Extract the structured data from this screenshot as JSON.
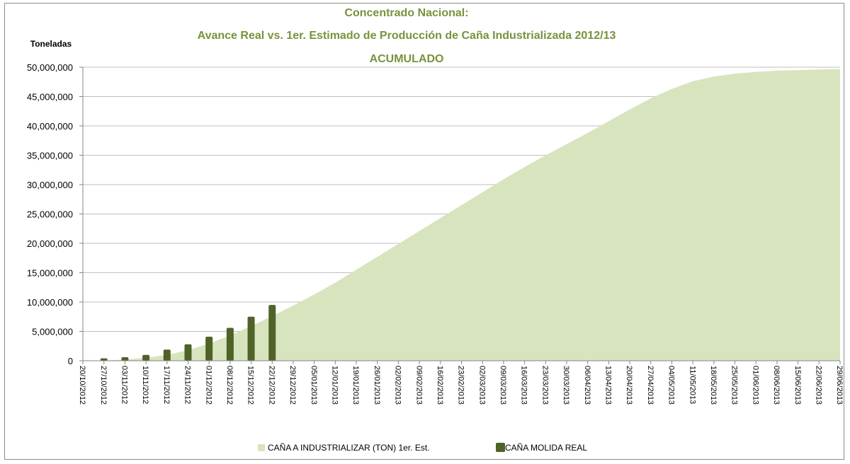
{
  "colors": {
    "title": "#77933c",
    "estimate_area": "#d7e4bd",
    "real_bars": "#4f6228",
    "gridline": "#bfbfbf"
  },
  "chart_data": {
    "type": "area",
    "title_lines": [
      "Concentrado Nacional:",
      "Avance Real vs. 1er. Estimado de Producción de Caña Industrializada 2012/13",
      "ACUMULADO"
    ],
    "ylabel": "Toneladas",
    "xlabel": "",
    "ylim": [
      0,
      50000000
    ],
    "yticks": [
      "50,000,000",
      "45,000,000",
      "40,000,000",
      "35,000,000",
      "30,000,000",
      "25,000,000",
      "20,000,000",
      "15,000,000",
      "10,000,000",
      "5,000,000",
      "0"
    ],
    "ytick_values": [
      50000000,
      45000000,
      40000000,
      35000000,
      30000000,
      25000000,
      20000000,
      15000000,
      10000000,
      5000000,
      0
    ],
    "x": [
      "20/10/2012",
      "27/10/2012",
      "03/11/2012",
      "10/11/2012",
      "17/11/2012",
      "24/11/2012",
      "01/12/2012",
      "08/12/2012",
      "15/12/2012",
      "22/12/2012",
      "29/12/2012",
      "05/01/2013",
      "12/01/2013",
      "19/01/2013",
      "26/01/2013",
      "02/02/2013",
      "09/02/2013",
      "16/02/2013",
      "23/02/2013",
      "02/03/2013",
      "09/03/2013",
      "16/03/2013",
      "23/03/2013",
      "30/03/2013",
      "06/04/2013",
      "13/04/2013",
      "20/04/2013",
      "27/04/2013",
      "04/05/2013",
      "11/05/2013",
      "18/05/2013",
      "25/05/2013",
      "01/06/2013",
      "08/06/2013",
      "15/06/2013",
      "22/06/2013",
      "29/06/2013"
    ],
    "legend_placement": "bottom",
    "grid": "horizontal",
    "series": [
      {
        "name": "CAÑA A INDUSTRIALIZAR (TON) 1er. Est.",
        "kind": "area",
        "values": [
          0,
          50000,
          200000,
          500000,
          1000000,
          1800000,
          2900000,
          4300000,
          5900000,
          7600000,
          9400000,
          11300000,
          13300000,
          15500000,
          17700000,
          19900000,
          22100000,
          24300000,
          26500000,
          28700000,
          30900000,
          33000000,
          35000000,
          36900000,
          38800000,
          40800000,
          42800000,
          44700000,
          46300000,
          47600000,
          48400000,
          48900000,
          49200000,
          49400000,
          49500000,
          49600000,
          49700000
        ]
      },
      {
        "name": "CAÑA MOLIDA REAL",
        "kind": "bar",
        "values": [
          null,
          400000,
          600000,
          1000000,
          1900000,
          2800000,
          4100000,
          5600000,
          7500000,
          9500000,
          null,
          null,
          null,
          null,
          null,
          null,
          null,
          null,
          null,
          null,
          null,
          null,
          null,
          null,
          null,
          null,
          null,
          null,
          null,
          null,
          null,
          null,
          null,
          null,
          null,
          null,
          null
        ]
      }
    ]
  }
}
